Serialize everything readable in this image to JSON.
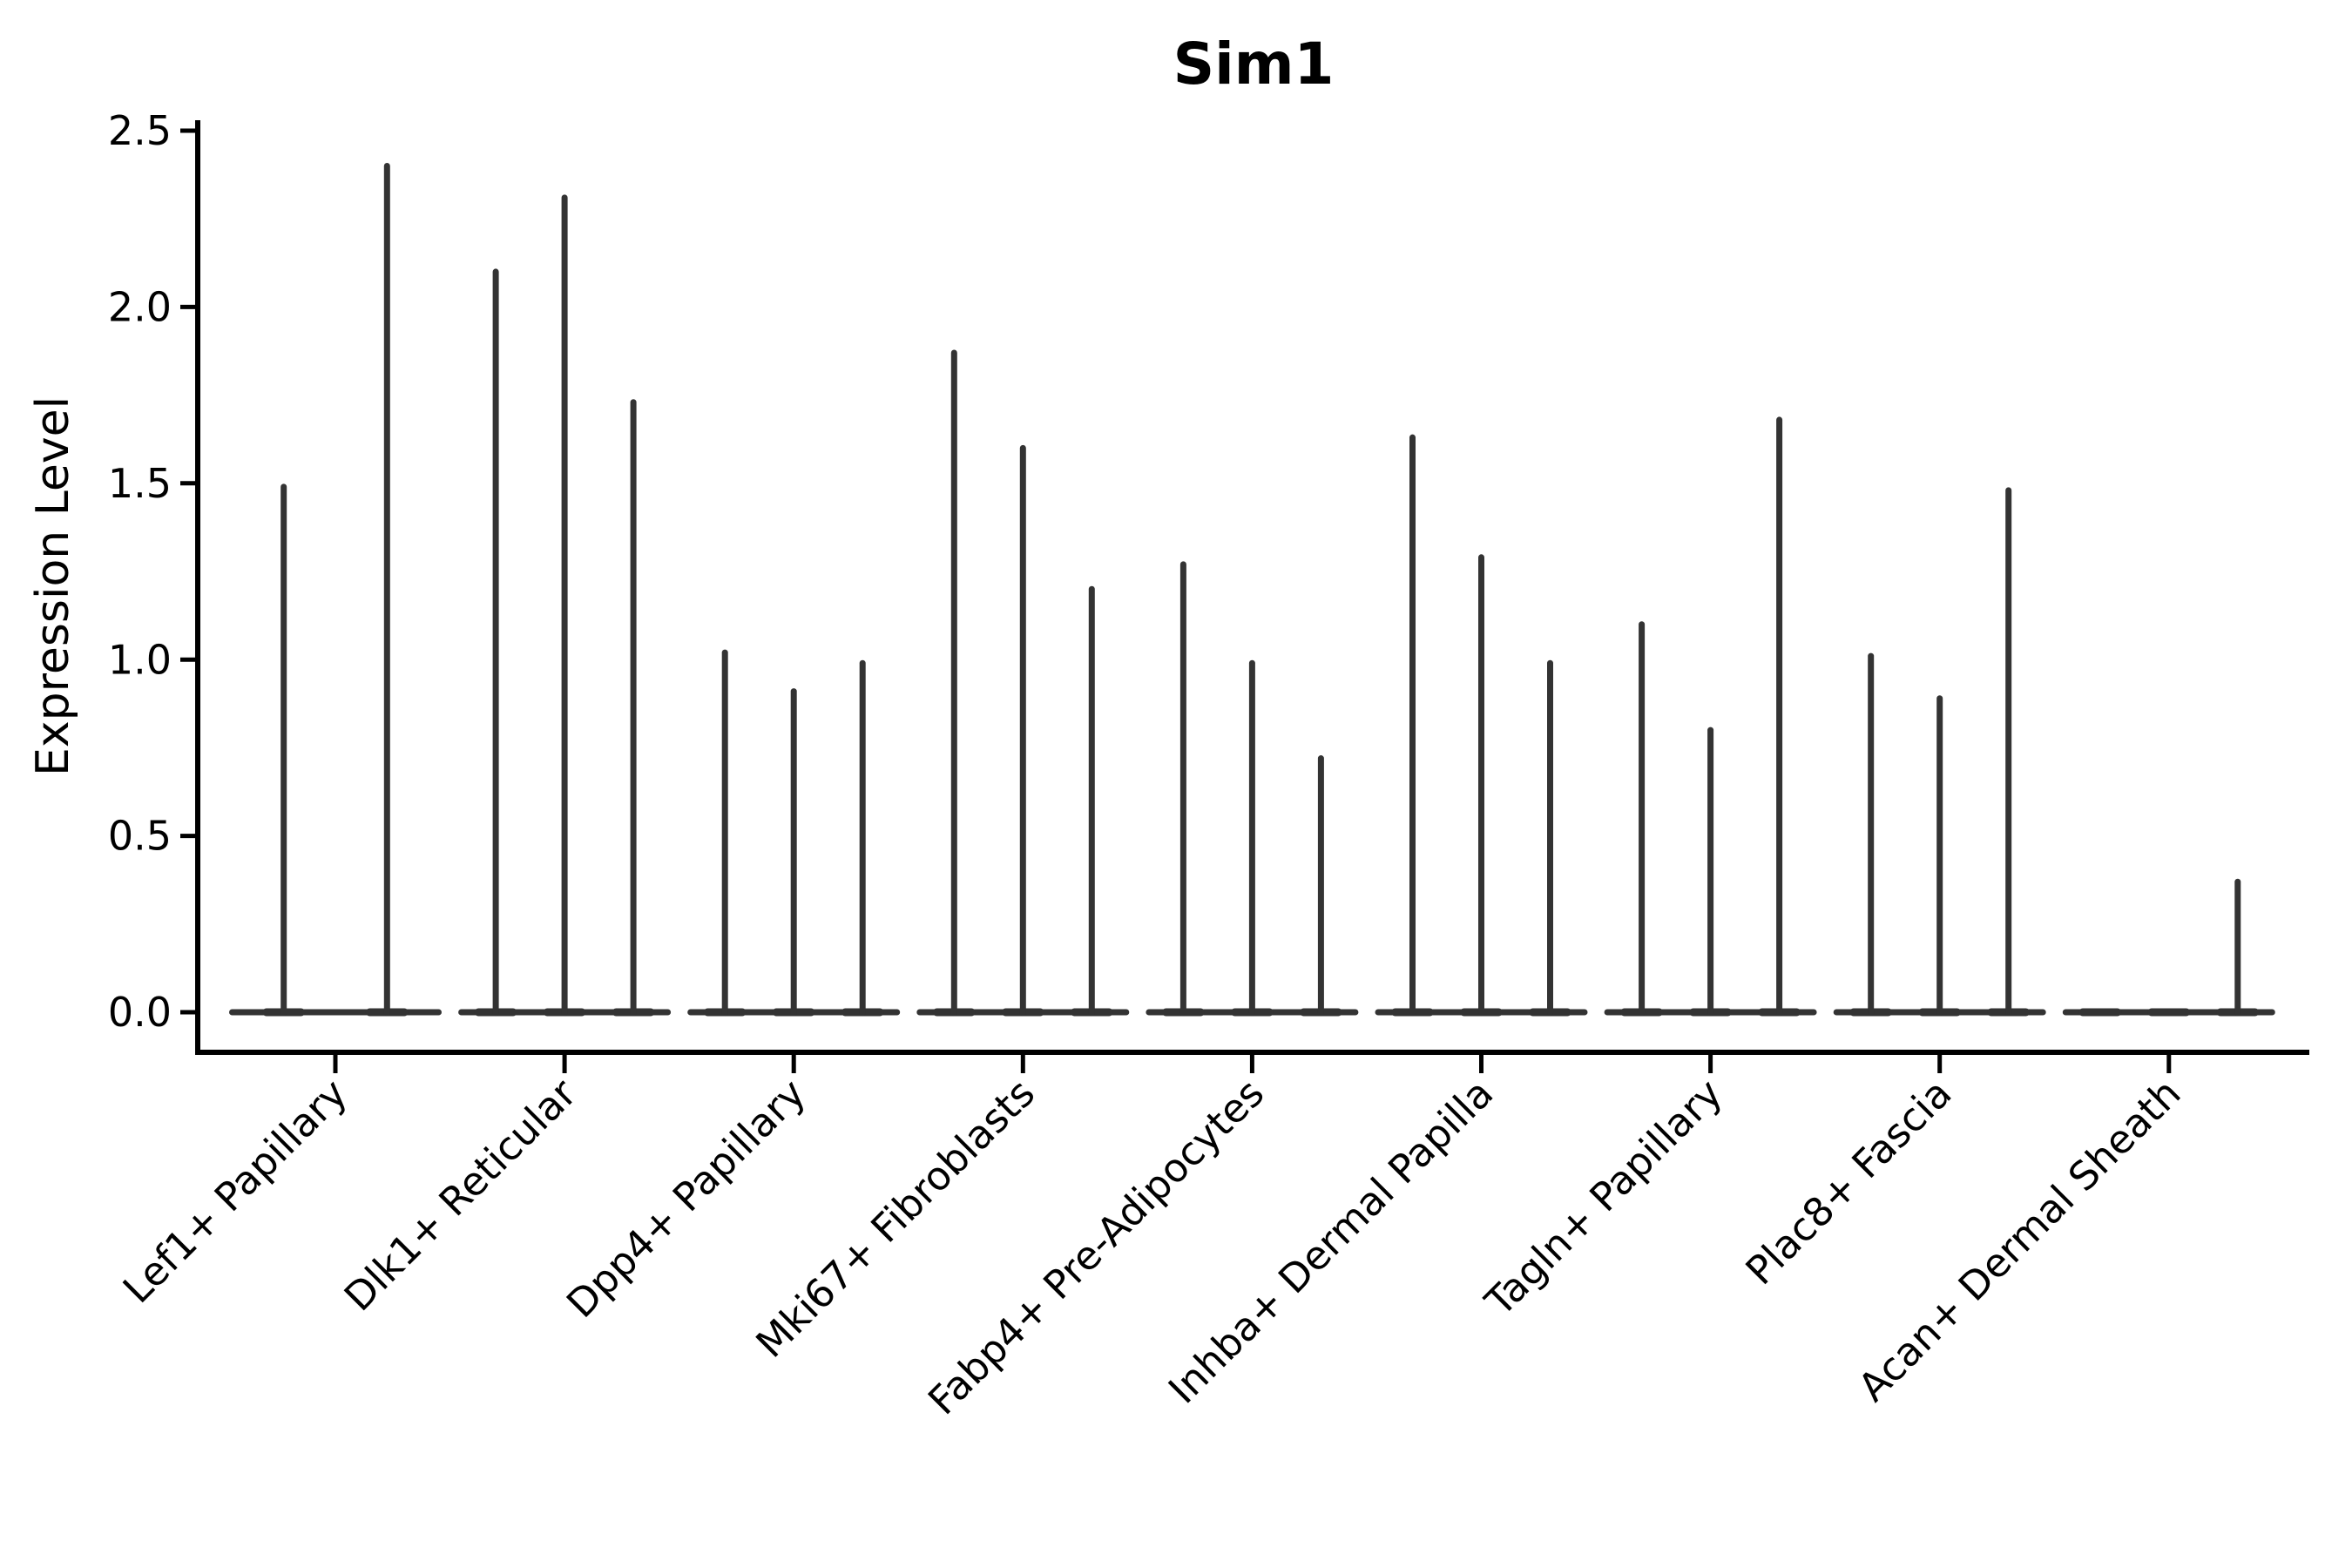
{
  "figure": {
    "background_color": "#ffffff",
    "line_color": "#333333",
    "axis_color": "#000000"
  },
  "chart_data": {
    "type": "violin",
    "title": "Sim1",
    "xlabel": "",
    "ylabel": "Expression Level",
    "grid": false,
    "legend": "none",
    "y_axis": {
      "tick_labels": [
        "0.0",
        "0.5",
        "1.0",
        "1.5",
        "2.0",
        "2.5"
      ],
      "tick_values": [
        0.0,
        0.5,
        1.0,
        1.5,
        2.0,
        2.5
      ],
      "ylim": [
        0,
        2.5
      ]
    },
    "groups": [
      {
        "category": "Lef1+ Papillary",
        "violin_max_values": [
          1.49,
          2.4
        ]
      },
      {
        "category": "Dlk1+ Reticular",
        "violin_max_values": [
          2.1,
          2.31,
          1.73
        ]
      },
      {
        "category": "Dpp4+ Papillary",
        "violin_max_values": [
          1.02,
          0.91,
          0.99
        ]
      },
      {
        "category": "Mki67+ Fibroblasts",
        "violin_max_values": [
          1.87,
          1.6,
          1.2
        ]
      },
      {
        "category": "Fabp4+ Pre-Adipocytes",
        "violin_max_values": [
          1.27,
          0.99,
          0.72
        ]
      },
      {
        "category": "Inhba+ Dermal Papilla",
        "violin_max_values": [
          1.63,
          1.29,
          0.99
        ]
      },
      {
        "category": "Tagln+ Papillary",
        "violin_max_values": [
          1.1,
          0.8,
          1.68
        ]
      },
      {
        "category": "Plac8+ Fascia",
        "violin_max_values": [
          1.01,
          0.89,
          1.48
        ]
      },
      {
        "category": "Acan+ Dermal Sheath",
        "violin_max_values": [
          0,
          0,
          0.37
        ]
      }
    ]
  }
}
